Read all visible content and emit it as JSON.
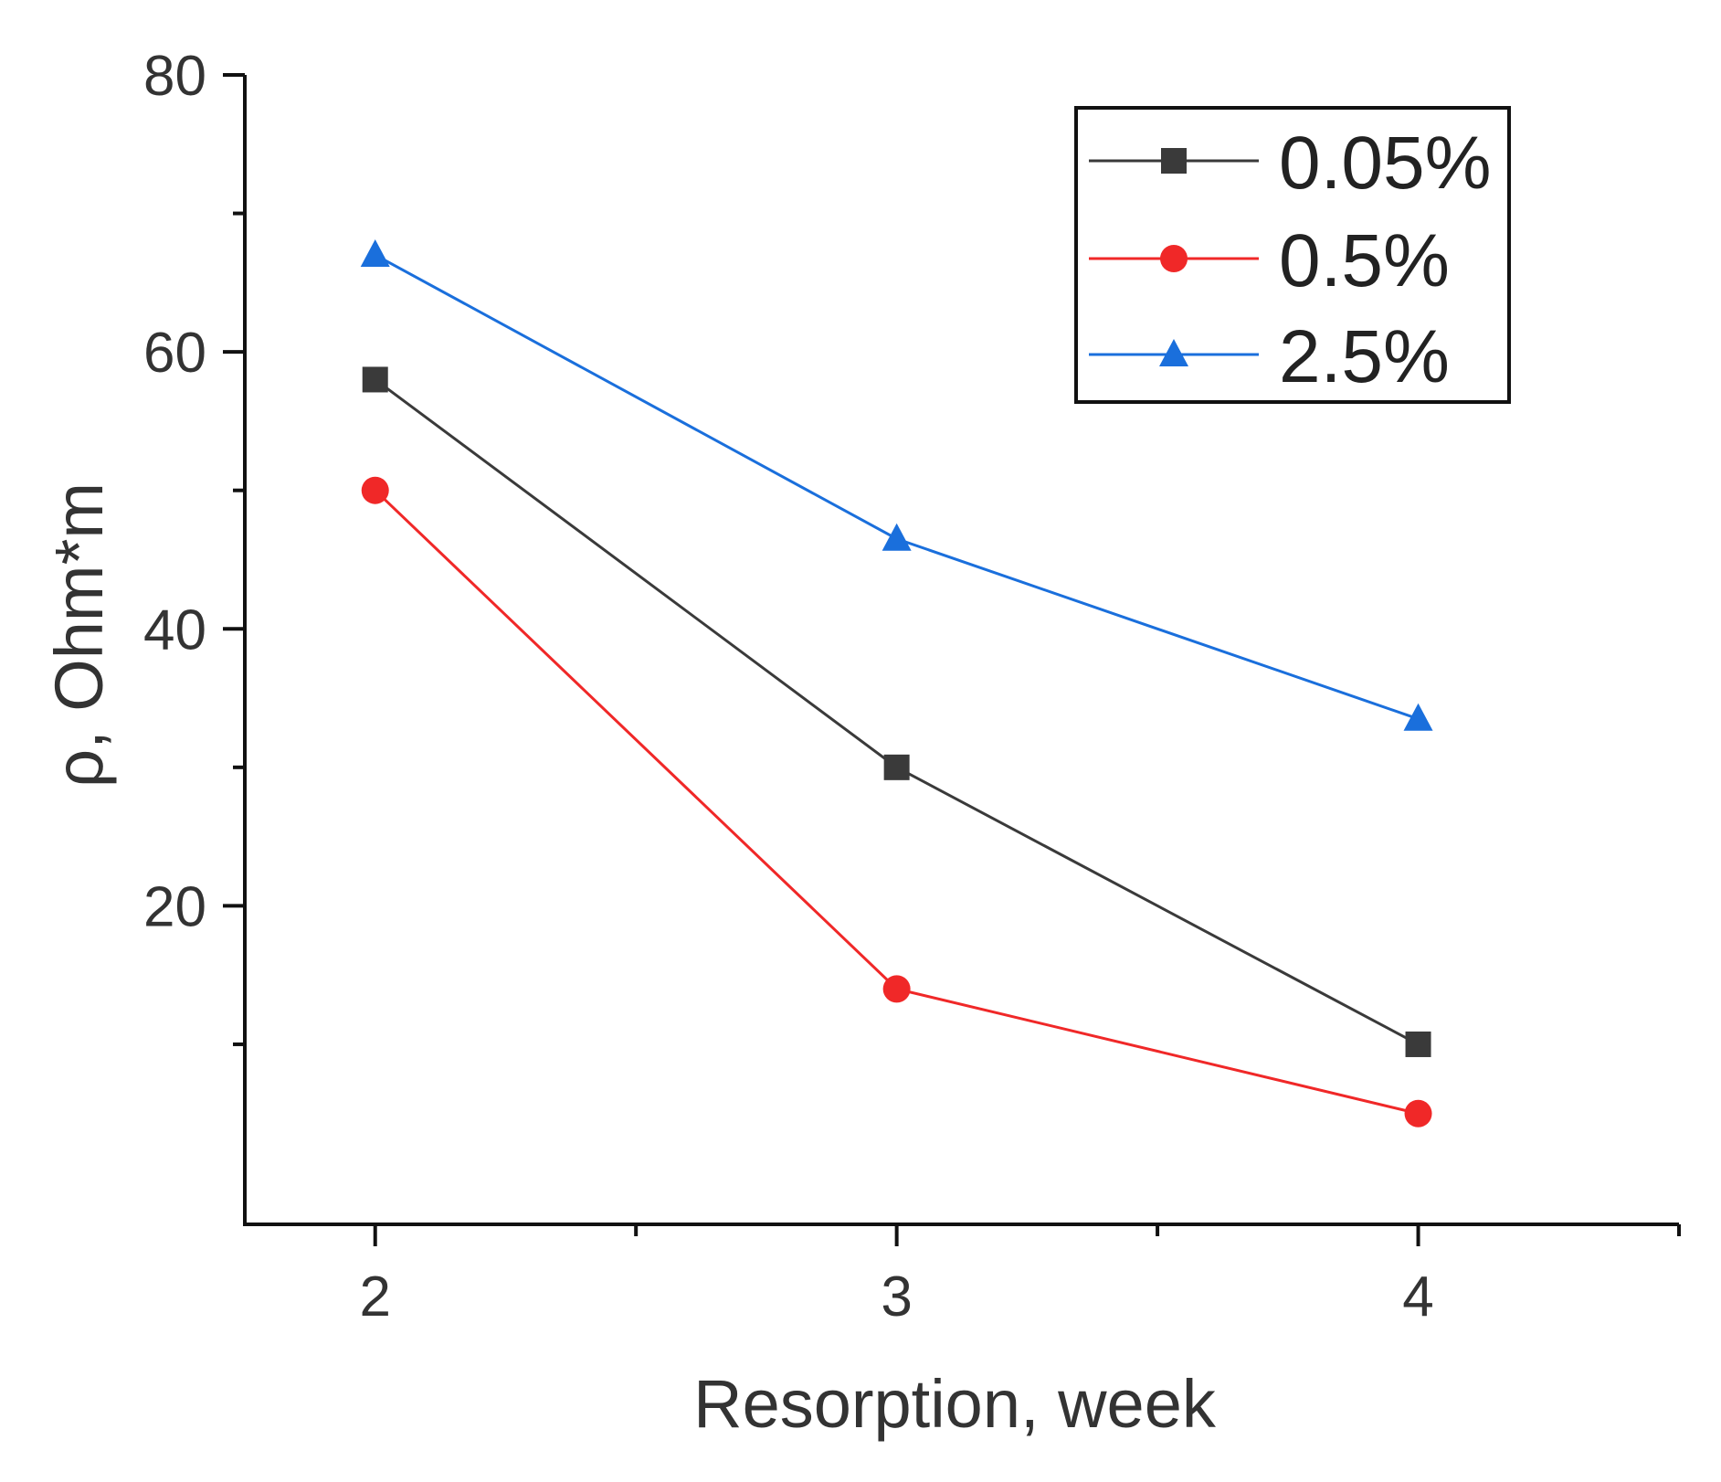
{
  "chart_data": {
    "type": "line",
    "title": "",
    "xlabel": "Resorption, week",
    "ylabel": "ρ, Ohm*m",
    "x": [
      2,
      3,
      4
    ],
    "xlim": [
      1.75,
      4.5
    ],
    "ylim": [
      -3,
      80
    ],
    "xticks": [
      2,
      3,
      4
    ],
    "xticks_minor": [
      2.5,
      3.5,
      4.5
    ],
    "yticks": [
      20,
      40,
      60,
      80
    ],
    "yticks_minor": [
      10,
      30,
      50,
      70
    ],
    "grid": false,
    "legend_position": "top-right",
    "series": [
      {
        "name": "0.05%",
        "marker": "square",
        "color": "#3a3a3a",
        "values": [
          58,
          30,
          10
        ]
      },
      {
        "name": "0.5%",
        "marker": "circle",
        "color": "#f02828",
        "values": [
          50,
          14,
          5
        ]
      },
      {
        "name": "2.5%",
        "marker": "triangle",
        "color": "#1a6fdc",
        "values": [
          67,
          46.5,
          33.5
        ]
      }
    ]
  }
}
